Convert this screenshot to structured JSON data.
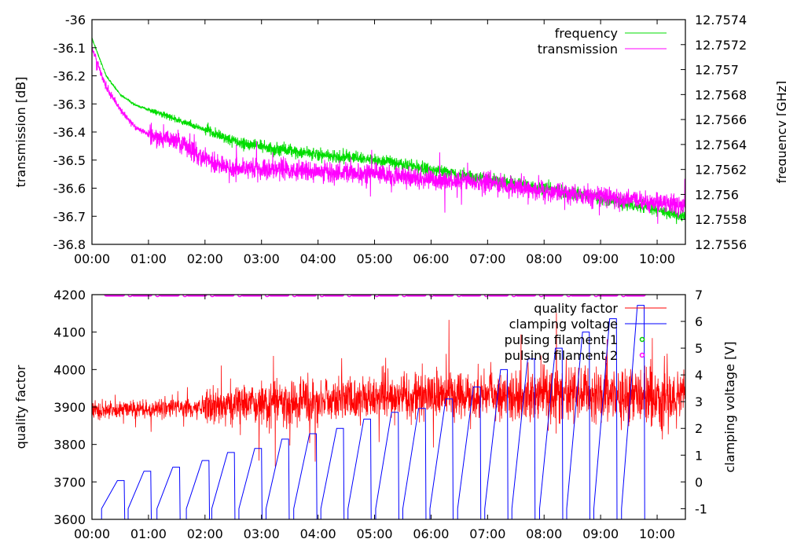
{
  "chart_data": [
    {
      "type": "line",
      "xlabel": "",
      "ylabel": "transmission [dB]",
      "y2label": "frequency [GHz]",
      "xlim": [
        0,
        10.5
      ],
      "ylim": [
        -36.8,
        -36
      ],
      "y2lim": [
        12.7556,
        12.7574
      ],
      "xticks": [
        "00:00",
        "01:00",
        "02:00",
        "03:00",
        "04:00",
        "05:00",
        "06:00",
        "07:00",
        "08:00",
        "09:00",
        "10:00"
      ],
      "yticks": [
        "-36",
        "-36.1",
        "-36.2",
        "-36.3",
        "-36.4",
        "-36.5",
        "-36.6",
        "-36.7",
        "-36.8"
      ],
      "y2ticks": [
        "12.7574",
        "12.7572",
        "12.757",
        "12.7568",
        "12.7566",
        "12.7564",
        "12.7562",
        "12.756",
        "12.7558",
        "12.7556"
      ],
      "legend_position": "top-right",
      "series": [
        {
          "name": "frequency",
          "color": "#00dd00",
          "axis": "y2",
          "x": [
            0,
            0.25,
            0.5,
            0.75,
            1,
            1.5,
            2,
            2.5,
            3,
            4,
            5,
            6,
            7,
            8,
            9,
            10,
            10.5
          ],
          "values": [
            12.75725,
            12.75695,
            12.7568,
            12.75672,
            12.75668,
            12.7566,
            12.75652,
            12.75643,
            12.75638,
            12.75632,
            12.75628,
            12.7562,
            12.75612,
            12.75605,
            12.75597,
            12.75588,
            12.75582
          ]
        },
        {
          "name": "transmission",
          "color": "#ff00ff",
          "axis": "y",
          "x": [
            0,
            0.25,
            0.5,
            0.75,
            1,
            1.5,
            2,
            2.5,
            3,
            4,
            5,
            6,
            7,
            8,
            9,
            10,
            10.5
          ],
          "values": [
            -36.1,
            -36.24,
            -36.32,
            -36.38,
            -36.41,
            -36.43,
            -36.5,
            -36.53,
            -36.53,
            -36.54,
            -36.55,
            -36.57,
            -36.58,
            -36.61,
            -36.63,
            -36.65,
            -36.66
          ]
        }
      ]
    },
    {
      "type": "line",
      "xlabel": "",
      "ylabel": "quality factor",
      "y2label": "clamping voltage [V]",
      "xlim": [
        0,
        10.5
      ],
      "ylim": [
        3600,
        4200
      ],
      "y2lim": [
        -1.4,
        7
      ],
      "xticks": [
        "00:00",
        "01:00",
        "02:00",
        "03:00",
        "04:00",
        "05:00",
        "06:00",
        "07:00",
        "08:00",
        "09:00",
        "10:00"
      ],
      "yticks": [
        "4200",
        "4100",
        "4000",
        "3900",
        "3800",
        "3700",
        "3600"
      ],
      "y2ticks": [
        "7",
        "6",
        "5",
        "4",
        "3",
        "2",
        "1",
        "0",
        "-1"
      ],
      "legend_position": "top-right",
      "series": [
        {
          "name": "quality factor",
          "color": "#ff0000",
          "axis": "y",
          "x": [
            0,
            2,
            4,
            6,
            8,
            10.5
          ],
          "values": [
            3890,
            3900,
            3920,
            3930,
            3935,
            3930
          ]
        },
        {
          "name": "clamping voltage",
          "color": "#0000ff",
          "axis": "y2",
          "cycle_start_hours": [
            0.17,
            0.64,
            1.15,
            1.67,
            2.12,
            2.6,
            3.08,
            3.57,
            4.05,
            4.53,
            5.02,
            5.5,
            5.98,
            6.47,
            6.95,
            7.43,
            7.92,
            8.4,
            8.88,
            9.37
          ],
          "plateaus": [
            0.05,
            0.4,
            0.55,
            0.8,
            1.1,
            1.25,
            1.6,
            1.8,
            2.0,
            2.35,
            2.6,
            2.75,
            3.1,
            3.55,
            4.2,
            4.6,
            5.0,
            5.6,
            6.1,
            6.6
          ]
        },
        {
          "name": "pulsing filament 1",
          "color": "#00cc00",
          "axis": "y2",
          "values": []
        },
        {
          "name": "pulsing filament 2",
          "color": "#ff00ff",
          "axis": "y2",
          "level": 7,
          "interval_hours": 0.485,
          "first_hour": 0.25
        }
      ]
    }
  ]
}
